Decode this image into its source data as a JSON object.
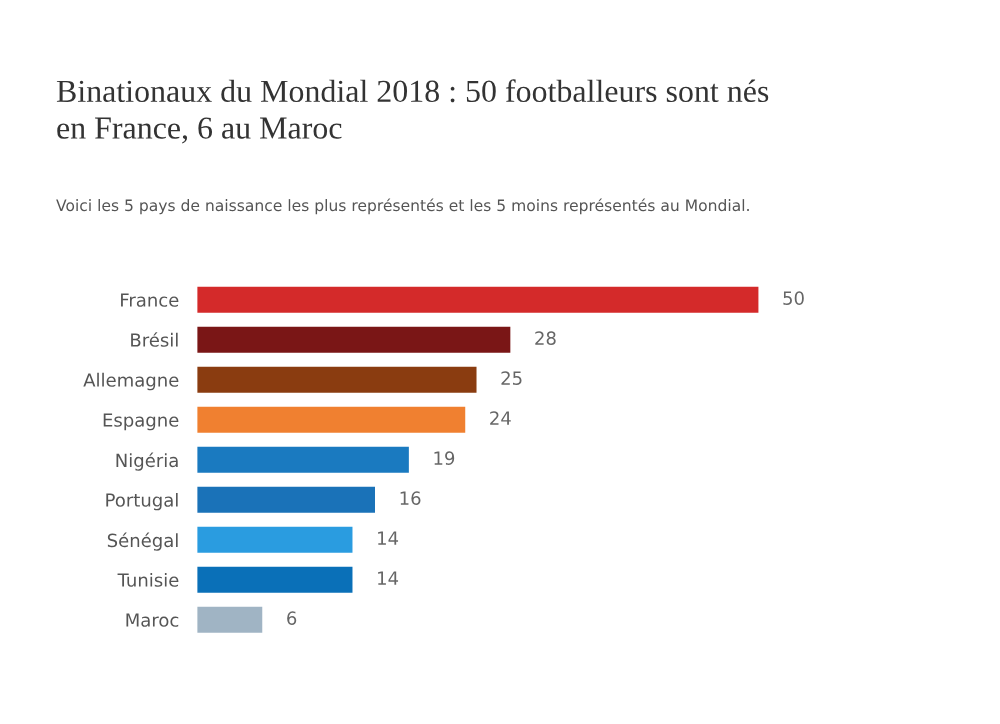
{
  "chart_data": {
    "type": "bar",
    "orientation": "horizontal",
    "title": "Binationaux du Mondial 2018 : 50 footballeurs sont nés\nen France, 6 au Maroc",
    "subtitle": "Voici les 5 pays de naissance les plus représentés et les 5 moins représentés au Mondial.",
    "categories": [
      "France",
      "Brésil",
      "Allemagne",
      "Espagne",
      "Nigéria",
      "Portugal",
      "Sénégal",
      "Tunisie",
      "Maroc"
    ],
    "values": [
      50,
      28,
      25,
      24,
      19,
      16,
      14,
      14,
      6
    ],
    "colors": [
      "#d42a2a",
      "#7a1616",
      "#8a3c10",
      "#f08030",
      "#1a7ac0",
      "#1a72b8",
      "#2a9ce0",
      "#0a70b8",
      "#a0b4c4"
    ],
    "data_labels": true,
    "grid": false,
    "legend": false
  }
}
